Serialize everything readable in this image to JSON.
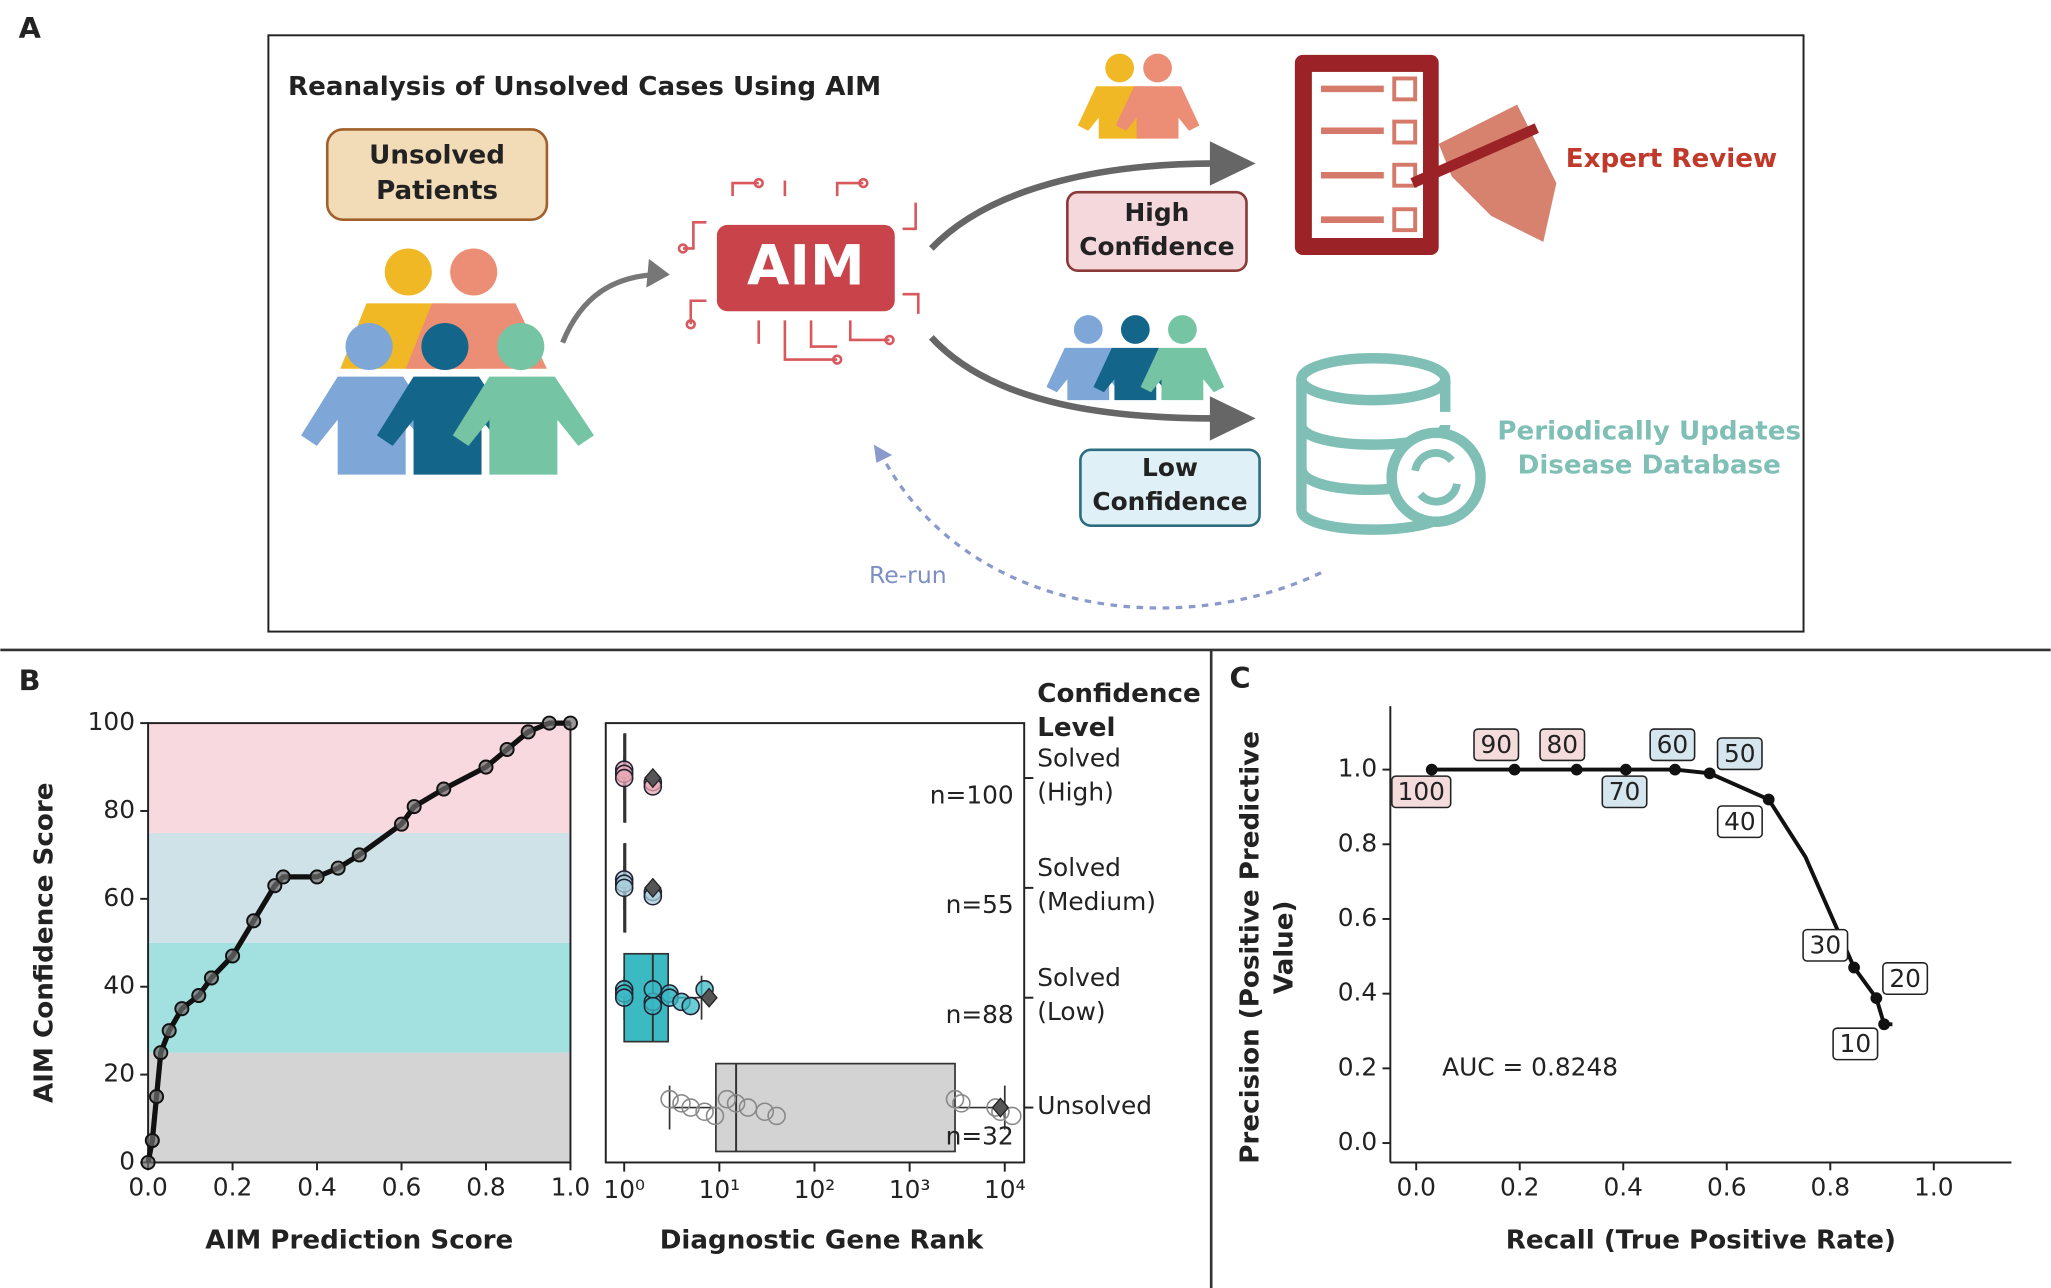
{
  "panel_labels": [
    "A",
    "B",
    "C"
  ],
  "diagram": {
    "title": "Reanalysis of Unsolved Cases Using AIM",
    "input": "Unsolved Patients",
    "model": "AIM",
    "high": "High Confidence",
    "low": "Low Confidence",
    "expert": "Expert Review",
    "database": "Periodically Updates Disease Database",
    "rerun": "Re-run"
  },
  "chart_data": [
    {
      "type": "line",
      "xlabel": "AIM Prediction Score",
      "ylabel": "AIM Confidence Score",
      "x": [
        0,
        0.01,
        0.02,
        0.03,
        0.05,
        0.08,
        0.12,
        0.15,
        0.2,
        0.25,
        0.3,
        0.32,
        0.4,
        0.45,
        0.5,
        0.6,
        0.63,
        0.7,
        0.8,
        0.85,
        0.9,
        0.95,
        1.0
      ],
      "values": [
        0,
        5,
        15,
        25,
        30,
        35,
        38,
        42,
        47,
        55,
        63,
        65,
        65,
        67,
        70,
        77,
        81,
        85,
        90,
        94,
        98,
        100,
        100
      ],
      "color": "#111111",
      "marker_color": "#6e6e6e",
      "xlim": [
        0,
        1
      ],
      "ylim": [
        0,
        100
      ],
      "xticks": [
        {
          "value": 0,
          "label": "0.0"
        },
        0.2,
        0.4,
        0.6,
        0.8,
        {
          "value": 1,
          "label": "1.0"
        }
      ],
      "yticks": [
        0,
        20,
        40,
        60,
        80,
        100
      ],
      "bands": [
        {
          "from": 0,
          "to": 25,
          "color": "#d4d4d4"
        },
        {
          "from": 25,
          "to": 50,
          "color": "#a3e0e0"
        },
        {
          "from": 50,
          "to": 75,
          "color": "#cfe2e8"
        },
        {
          "from": 75,
          "to": 100,
          "color": "#f8d9df"
        }
      ]
    },
    {
      "type": "box",
      "xlabel": "Diagnostic Gene Rank",
      "legend_title": "Confidence Level",
      "log_x": true,
      "categories": [
        "Solved (High)",
        "Solved (Medium)",
        "Solved (Low)",
        "Unsolved"
      ],
      "xlim": [
        0.64,
        16000
      ],
      "xticks": [
        {
          "value": 1,
          "label": "10⁰"
        },
        {
          "value": 10,
          "label": "10¹"
        },
        {
          "value": 100,
          "label": "10²"
        },
        {
          "value": 1000,
          "label": "10³"
        },
        {
          "value": 10000,
          "label": "10⁴"
        }
      ],
      "boxes": [
        {
          "color": "#e8a9b4",
          "whisker_low": 1,
          "q1": 1,
          "median": 1,
          "q3": 1,
          "whisker_high": 1,
          "mean": 2,
          "points": [
            1,
            1,
            1,
            2,
            2
          ]
        },
        {
          "color": "#a9cfdc",
          "whisker_low": 1,
          "q1": 1,
          "median": 1,
          "q3": 1,
          "whisker_high": 1,
          "mean": 2,
          "points": [
            1,
            1,
            1,
            2,
            2
          ]
        },
        {
          "color": "#3bbac4",
          "whisker_low": 1,
          "q1": 1,
          "median": 2,
          "q3": 2.9,
          "whisker_high": 6.5,
          "mean": 7.8,
          "points": [
            1,
            1,
            1,
            2,
            2,
            2,
            3,
            3,
            4,
            5,
            7
          ]
        },
        {
          "color": "#d3d3d3",
          "whisker_low": 3,
          "q1": 9.2,
          "median": 15,
          "q3": 3000,
          "whisker_high": 10000,
          "mean": 9000,
          "points": [
            3,
            4,
            5,
            7,
            9,
            12,
            15,
            20,
            30,
            40,
            3000,
            3500,
            8000,
            9000,
            12000
          ]
        }
      ],
      "n": [
        100,
        55,
        88,
        32
      ],
      "n_labels": [
        "n=100",
        "n=55",
        "n=88",
        "n=32"
      ]
    },
    {
      "type": "line",
      "xlabel": "Recall (True Positive Rate)",
      "ylabel": "Precision (Positive Predictive Value)",
      "x": [
        0.03,
        0.19,
        0.31,
        0.405,
        0.5,
        0.567,
        0.681,
        0.752,
        0.846,
        0.889,
        0.904,
        0.92
      ],
      "values": [
        1,
        1,
        1,
        1,
        1,
        0.99,
        0.92,
        0.766,
        0.47,
        0.388,
        0.318,
        0.318
      ],
      "color": "#111111",
      "xlim": [
        -0.05,
        1.15
      ],
      "ylim": [
        -0.052,
        1.17
      ],
      "xticks": [
        {
          "value": 0,
          "label": "0.0"
        },
        0.2,
        0.4,
        0.6,
        0.8,
        {
          "value": 1,
          "label": "1.0"
        }
      ],
      "yticks": [
        {
          "value": 0,
          "label": "0.0"
        },
        0.2,
        0.4,
        0.6,
        0.8,
        {
          "value": 1,
          "label": "1.0"
        }
      ],
      "thresholds": {
        "x": [
          0.03,
          0.19,
          0.31,
          0.405,
          0.5,
          0.567,
          0.681,
          0.846,
          0.889,
          0.904
        ],
        "y": [
          1,
          1,
          1,
          1,
          1,
          0.99,
          0.92,
          0.47,
          0.388,
          0.318
        ],
        "values": [
          100,
          90,
          80,
          70,
          60,
          50,
          40,
          30,
          20,
          10
        ],
        "colors": [
          "#f4dcdc",
          "#f4dcdc",
          "#f4dcdc",
          "#d6e6ee",
          "#d6e6ee",
          "#d6e6ee",
          "#ffffff",
          "#ffffff",
          "#ffffff",
          "#ffffff"
        ]
      },
      "annotation": "AUC = 0.8248"
    }
  ]
}
